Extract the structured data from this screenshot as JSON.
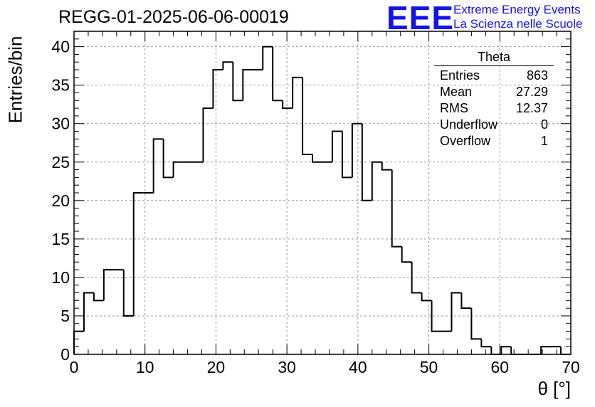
{
  "header": {
    "title": "REGG-01-2025-06-06-00019",
    "logo_text": "EEE",
    "logo_line1": "Extreme Energy Events",
    "logo_line2": "La Scienza nelle Scuole",
    "logo_color": "#1414e6"
  },
  "stats": {
    "title": "Theta",
    "rows": [
      {
        "label": "Entries",
        "value": "863"
      },
      {
        "label": "Mean",
        "value": "27.29"
      },
      {
        "label": "RMS",
        "value": "12.37"
      },
      {
        "label": "Underflow",
        "value": "0"
      },
      {
        "label": "Overflow",
        "value": "1"
      }
    ]
  },
  "chart_data": {
    "type": "bar",
    "title": "REGG-01-2025-06-06-00019",
    "xlabel": "θ [°]",
    "ylabel": "Entries/bin",
    "xlim": [
      0,
      70
    ],
    "ylim": [
      0,
      42
    ],
    "bin_width": 1.4,
    "x_ticks": [
      0,
      10,
      20,
      30,
      40,
      50,
      60,
      70
    ],
    "y_ticks": [
      0,
      5,
      10,
      15,
      20,
      25,
      30,
      35,
      40
    ],
    "grid": true,
    "values": [
      3,
      8,
      7,
      11,
      11,
      5,
      21,
      21,
      28,
      23,
      25,
      25,
      25,
      32,
      37,
      38,
      33,
      37,
      37,
      40,
      33,
      32,
      36,
      26,
      25,
      25,
      29,
      23,
      30,
      20,
      25,
      24,
      14,
      12,
      8,
      7,
      3,
      3,
      8,
      6,
      2,
      1,
      0,
      1,
      0,
      0,
      0,
      1,
      1,
      0
    ]
  }
}
